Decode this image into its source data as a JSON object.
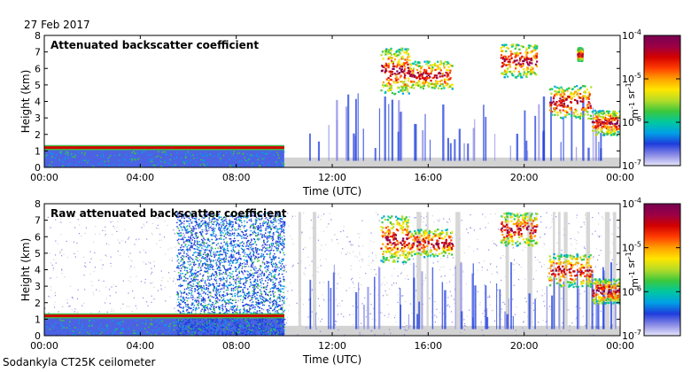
{
  "header": {
    "date": "27 Feb 2017"
  },
  "footer": {
    "instrument": "Sodankyla CT25K ceilometer"
  },
  "colors": {
    "background": "#ffffff",
    "nodata_gray": "#d3d3d3",
    "colorbar": [
      "#e6e6fa",
      "#8a8ae6",
      "#1e3cdc",
      "#00a0e6",
      "#00c8a0",
      "#3cc83c",
      "#b4dc28",
      "#ffe600",
      "#ffa000",
      "#ff3c00",
      "#d20000",
      "#9b0046",
      "#780050"
    ]
  },
  "chart_data": [
    {
      "type": "heatmap",
      "title": "Attenuated backscatter coefficient",
      "xlabel": "Time (UTC)",
      "ylabel": "Height (km)",
      "xticks": [
        "00:00",
        "04:00",
        "08:00",
        "12:00",
        "16:00",
        "20:00",
        "00:00"
      ],
      "xlim": [
        0,
        24
      ],
      "yticks": [
        "0",
        "1",
        "2",
        "3",
        "4",
        "5",
        "6",
        "7",
        "8"
      ],
      "ylim": [
        0,
        8
      ],
      "grid": false,
      "colorbar": {
        "scale": "log",
        "range": [
          1e-07,
          0.0001
        ],
        "tick_labels": [
          "10-7",
          "10-6",
          "10-5",
          "10-4"
        ],
        "label": "m-1 sr-1"
      },
      "features": {
        "boundary_layer": {
          "time_range_h": [
            0,
            10
          ],
          "height_km": 1.2
        },
        "clouds": [
          {
            "time_range_h": [
              14,
              15.2
            ],
            "height_range_km": [
              4.5,
              7.3
            ]
          },
          {
            "time_range_h": [
              15.2,
              17
            ],
            "height_range_km": [
              4.8,
              6.5
            ]
          },
          {
            "time_range_h": [
              19,
              20.5
            ],
            "height_range_km": [
              5.5,
              7.5
            ]
          },
          {
            "time_range_h": [
              21,
              22.8
            ],
            "height_range_km": [
              3,
              5
            ]
          },
          {
            "time_range_h": [
              22.2,
              22.4
            ],
            "height_range_km": [
              6.5,
              7.3
            ]
          },
          {
            "time_range_h": [
              22.8,
              24
            ],
            "height_range_km": [
              2,
              3.5
            ]
          }
        ]
      }
    },
    {
      "type": "heatmap",
      "title": "Raw attenuated backscatter coefficient",
      "xlabel": "Time (UTC)",
      "ylabel": "Height (km)",
      "xticks": [
        "00:00",
        "04:00",
        "08:00",
        "12:00",
        "16:00",
        "20:00",
        "00:00"
      ],
      "xlim": [
        0,
        24
      ],
      "yticks": [
        "0",
        "1",
        "2",
        "3",
        "4",
        "5",
        "6",
        "7",
        "8"
      ],
      "ylim": [
        0,
        8
      ],
      "grid": false,
      "colorbar": {
        "scale": "log",
        "range": [
          1e-07,
          0.0001
        ],
        "tick_labels": [
          "10-7",
          "10-6",
          "10-5",
          "10-4"
        ],
        "label": "m-1 sr-1"
      },
      "features": {
        "boundary_layer": {
          "time_range_h": [
            0,
            10
          ],
          "height_km": 1.2
        },
        "noise_region": {
          "time_range_h": [
            5.5,
            10
          ],
          "height_range_km": [
            0,
            7.5
          ]
        },
        "clouds": [
          {
            "time_range_h": [
              14,
              15.2
            ],
            "height_range_km": [
              4.5,
              7.3
            ]
          },
          {
            "time_range_h": [
              15.2,
              17
            ],
            "height_range_km": [
              4.8,
              6.5
            ]
          },
          {
            "time_range_h": [
              19,
              20.5
            ],
            "height_range_km": [
              5.5,
              7.5
            ]
          },
          {
            "time_range_h": [
              21,
              22.8
            ],
            "height_range_km": [
              3,
              5
            ]
          },
          {
            "time_range_h": [
              22.8,
              24
            ],
            "height_range_km": [
              2,
              3.5
            ]
          }
        ]
      }
    }
  ]
}
